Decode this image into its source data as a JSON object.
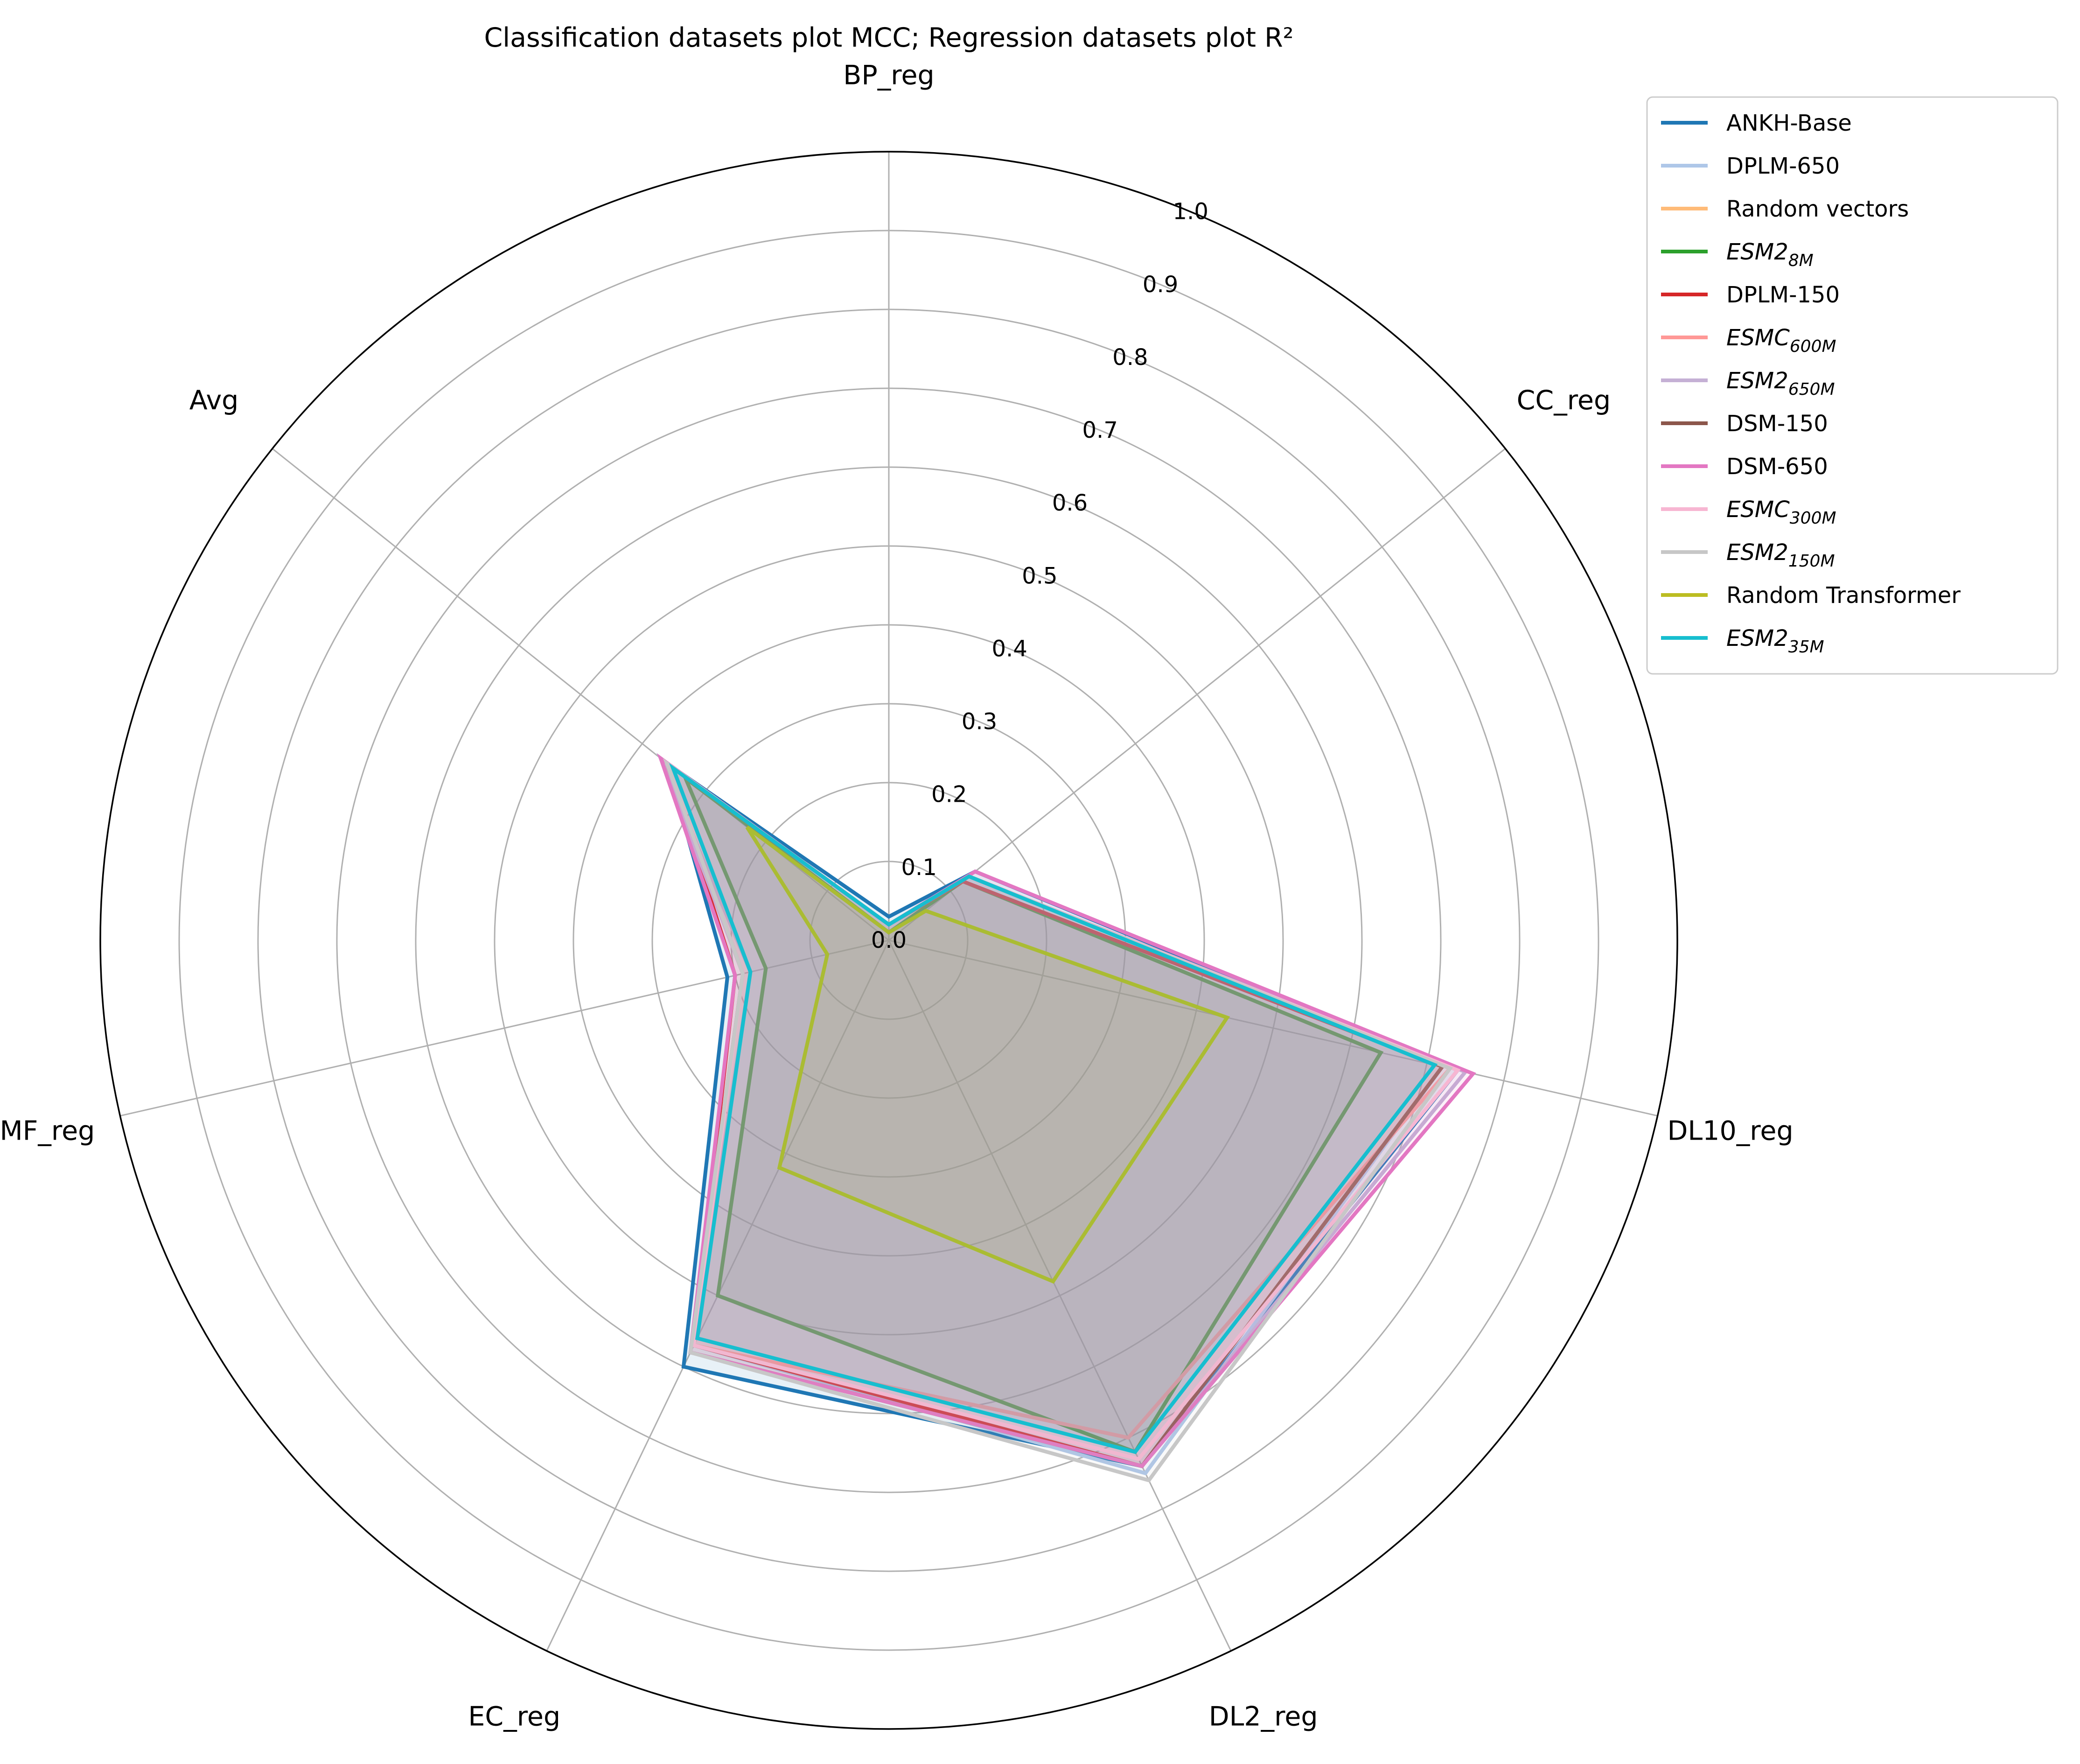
{
  "chart_data": {
    "type": "radar",
    "title": "Classification datasets plot MCC; Regression datasets plot R²",
    "axes": [
      "BP_reg",
      "CC_reg",
      "DL10_reg",
      "DL2_reg",
      "EC_reg",
      "MF_reg",
      "Avg"
    ],
    "rlim": [
      0,
      1.0
    ],
    "radial_ticks": [
      "0.0",
      "0.1",
      "0.2",
      "0.3",
      "0.4",
      "0.5",
      "0.6",
      "0.7",
      "0.8",
      "0.9",
      "1.0"
    ],
    "grid": true,
    "legend_position": "upper-right-outside",
    "series": [
      {
        "name": "ANKH-Base",
        "sub": "",
        "italic": false,
        "color": "#1f77b4",
        "values": [
          0.03,
          0.14,
          0.74,
          0.74,
          0.6,
          0.21,
          0.36
        ]
      },
      {
        "name": "DPLM-650",
        "sub": "",
        "italic": false,
        "color": "#aec7e8",
        "values": [
          0.02,
          0.13,
          0.72,
          0.75,
          0.57,
          0.18,
          0.37
        ]
      },
      {
        "name": "Random vectors",
        "sub": "",
        "italic": false,
        "color": "#ffbb78",
        "values": [
          0.0,
          0.0,
          0.0,
          0.0,
          0.0,
          0.0,
          0.0
        ]
      },
      {
        "name": "ESM2",
        "sub": "8M",
        "italic": true,
        "color": "#2ca02c",
        "values": [
          0.01,
          0.12,
          0.64,
          0.72,
          0.5,
          0.16,
          0.33
        ]
      },
      {
        "name": "DPLM-150",
        "sub": "",
        "italic": false,
        "color": "#d62728",
        "values": [
          0.02,
          0.12,
          0.72,
          0.74,
          0.57,
          0.2,
          0.36
        ]
      },
      {
        "name": "ESMC",
        "sub": "600M",
        "italic": true,
        "color": "#ff9896",
        "values": [
          0.02,
          0.13,
          0.73,
          0.7,
          0.57,
          0.19,
          0.36
        ]
      },
      {
        "name": "ESM2",
        "sub": "650M",
        "italic": true,
        "color": "#c5b0d5",
        "values": [
          0.02,
          0.13,
          0.75,
          0.74,
          0.58,
          0.19,
          0.37
        ]
      },
      {
        "name": "DSM-150",
        "sub": "",
        "italic": false,
        "color": "#8c564b",
        "values": [
          0.02,
          0.13,
          0.72,
          0.74,
          0.58,
          0.19,
          0.36
        ]
      },
      {
        "name": "DSM-650",
        "sub": "",
        "italic": false,
        "color": "#e377c2",
        "values": [
          0.02,
          0.14,
          0.76,
          0.74,
          0.58,
          0.2,
          0.37
        ]
      },
      {
        "name": "ESMC",
        "sub": "300M",
        "italic": true,
        "color": "#f7b6d2",
        "values": [
          0.02,
          0.13,
          0.74,
          0.73,
          0.57,
          0.19,
          0.36
        ]
      },
      {
        "name": "ESM2",
        "sub": "150M",
        "italic": true,
        "color": "#c7c7c7",
        "values": [
          0.02,
          0.13,
          0.73,
          0.76,
          0.58,
          0.19,
          0.36
        ]
      },
      {
        "name": "Random Transformer",
        "sub": "",
        "italic": false,
        "color": "#bcbd22",
        "values": [
          0.01,
          0.06,
          0.44,
          0.48,
          0.32,
          0.08,
          0.23
        ]
      },
      {
        "name": "ESM2",
        "sub": "35M",
        "italic": true,
        "color": "#17becf",
        "values": [
          0.02,
          0.13,
          0.71,
          0.72,
          0.56,
          0.18,
          0.35
        ]
      }
    ]
  }
}
